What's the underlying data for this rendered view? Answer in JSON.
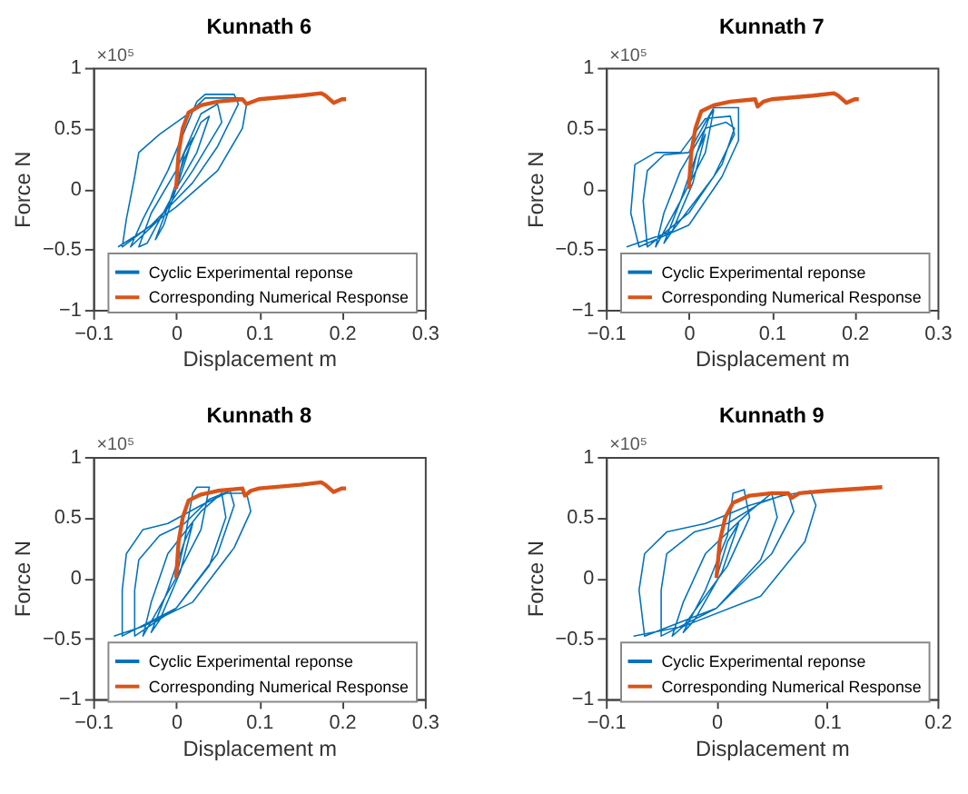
{
  "chart_data": [
    {
      "type": "line",
      "title": "Kunnath 6",
      "xlabel": "Displacement m",
      "ylabel": "Force N",
      "annotations": [
        "×10⁵"
      ],
      "xlim": [
        -0.1,
        0.3
      ],
      "xticks": [
        -0.1,
        0,
        0.1,
        0.2,
        0.3
      ],
      "ylim": [
        -1,
        1
      ],
      "yticks": [
        -1,
        -0.5,
        0,
        0.5,
        1
      ],
      "grid": false,
      "legend": "bottom",
      "series": [
        {
          "name": "Cyclic Experimental reponse",
          "color": "#0072bd",
          "x": [
            0,
            0.01,
            0.02,
            0.005,
            -0.015,
            -0.025,
            -0.01,
            0.01,
            0.03,
            0.04,
            0.025,
            0,
            -0.035,
            -0.045,
            -0.03,
            0,
            0.03,
            0.05,
            0.055,
            0.02,
            -0.02,
            -0.055,
            -0.04,
            -0.01,
            0.025,
            0.035,
            0.07,
            0.075,
            0.05,
            0.02,
            -0.03,
            -0.065,
            -0.06,
            -0.05,
            -0.045,
            -0.02,
            0.015,
            0.035,
            0.08,
            0.085,
            0.08,
            0.05,
            0,
            -0.04,
            -0.07
          ],
          "values": [
            0,
            0.3,
            0.42,
            0.1,
            -0.3,
            -0.42,
            -0.15,
            0.25,
            0.55,
            0.6,
            0.3,
            0,
            -0.45,
            -0.48,
            -0.2,
            0.15,
            0.62,
            0.7,
            0.55,
            0.15,
            -0.25,
            -0.48,
            -0.25,
            0.15,
            0.72,
            0.78,
            0.78,
            0.7,
            0.35,
            0.05,
            -0.3,
            -0.48,
            -0.25,
            0.1,
            0.3,
            0.45,
            0.62,
            0.75,
            0.75,
            0.7,
            0.5,
            0.15,
            -0.15,
            -0.35,
            -0.48
          ]
        },
        {
          "name": "Corresponding Numerical Response",
          "color": "#d95319",
          "x": [
            0,
            0.003,
            0.008,
            0.015,
            0.03,
            0.05,
            0.08,
            0.085,
            0.1,
            0.15,
            0.175,
            0.18,
            0.19,
            0.2,
            0.205
          ],
          "values": [
            0,
            0.3,
            0.5,
            0.63,
            0.69,
            0.72,
            0.74,
            0.7,
            0.74,
            0.77,
            0.79,
            0.77,
            0.71,
            0.74,
            0.74
          ]
        }
      ]
    },
    {
      "type": "line",
      "title": "Kunnath 7",
      "xlabel": "Displacement m",
      "ylabel": "Force N",
      "annotations": [
        "×10⁵"
      ],
      "xlim": [
        -0.1,
        0.3
      ],
      "xticks": [
        -0.1,
        0,
        0.1,
        0.2,
        0.3
      ],
      "ylim": [
        -1,
        1
      ],
      "yticks": [
        -1,
        -0.5,
        0,
        0.5,
        1
      ],
      "grid": false,
      "legend": "bottom",
      "series": [
        {
          "name": "Cyclic Experimental reponse",
          "color": "#0072bd",
          "x": [
            0,
            0.01,
            0.02,
            0.005,
            -0.02,
            -0.03,
            -0.01,
            0.01,
            0.025,
            0.03,
            0.02,
            -0.01,
            -0.04,
            -0.03,
            -0.01,
            0.02,
            0.045,
            0.055,
            0.04,
            0,
            -0.05,
            -0.055,
            -0.05,
            -0.03,
            0,
            0.02,
            0.03,
            0.06,
            0.06,
            0.04,
            0,
            -0.06,
            -0.07,
            -0.065,
            -0.04,
            -0.01,
            0.02,
            0.05,
            0.055,
            0.03,
            -0.02,
            -0.075
          ],
          "values": [
            0,
            0.3,
            0.45,
            0.05,
            -0.35,
            -0.45,
            -0.1,
            0.3,
            0.6,
            0.65,
            0.3,
            -0.1,
            -0.48,
            -0.2,
            0.15,
            0.5,
            0.55,
            0.5,
            0.2,
            -0.2,
            -0.48,
            -0.1,
            0.15,
            0.28,
            0.3,
            0.55,
            0.67,
            0.67,
            0.4,
            0.1,
            -0.3,
            -0.48,
            -0.2,
            0.2,
            0.3,
            0.3,
            0.58,
            0.6,
            0.45,
            0.1,
            -0.35,
            -0.48
          ]
        },
        {
          "name": "Corresponding Numerical Response",
          "color": "#d95319",
          "x": [
            0,
            0.003,
            0.008,
            0.015,
            0.03,
            0.05,
            0.08,
            0.083,
            0.09,
            0.1,
            0.15,
            0.175,
            0.18,
            0.19,
            0.2,
            0.205
          ],
          "values": [
            0,
            0.3,
            0.5,
            0.64,
            0.69,
            0.72,
            0.74,
            0.68,
            0.72,
            0.74,
            0.77,
            0.79,
            0.77,
            0.71,
            0.74,
            0.74
          ]
        }
      ]
    },
    {
      "type": "line",
      "title": "Kunnath 8",
      "xlabel": "Displacement m",
      "ylabel": "Force N",
      "annotations": [
        "×10⁵"
      ],
      "xlim": [
        -0.1,
        0.3
      ],
      "xticks": [
        -0.1,
        0,
        0.1,
        0.2,
        0.3
      ],
      "ylim": [
        -1,
        1
      ],
      "yticks": [
        -1,
        -0.5,
        0,
        0.5,
        1
      ],
      "grid": false,
      "legend": "bottom",
      "series": [
        {
          "name": "Cyclic Experimental reponse",
          "color": "#0072bd",
          "x": [
            0,
            0.01,
            0.02,
            0.005,
            -0.02,
            -0.03,
            -0.01,
            0.01,
            0.02,
            0.025,
            0.04,
            0.03,
            0,
            -0.04,
            -0.03,
            -0.01,
            0.03,
            0.055,
            0.06,
            0.04,
            0,
            -0.05,
            -0.05,
            -0.045,
            -0.02,
            0.01,
            0.04,
            0.065,
            0.07,
            0.05,
            0,
            -0.065,
            -0.065,
            -0.06,
            -0.04,
            -0.01,
            0.03,
            0.06,
            0.085,
            0.09,
            0.07,
            0.02,
            -0.04,
            -0.075
          ],
          "values": [
            0,
            0.3,
            0.45,
            0.05,
            -0.35,
            -0.45,
            -0.1,
            0.3,
            0.7,
            0.75,
            0.75,
            0.4,
            0,
            -0.48,
            -0.2,
            0.2,
            0.55,
            0.7,
            0.5,
            0.1,
            -0.25,
            -0.48,
            -0.1,
            0.15,
            0.35,
            0.45,
            0.65,
            0.72,
            0.6,
            0.2,
            -0.25,
            -0.48,
            -0.1,
            0.2,
            0.4,
            0.45,
            0.6,
            0.7,
            0.7,
            0.55,
            0.25,
            -0.2,
            -0.4,
            -0.48
          ]
        },
        {
          "name": "Corresponding Numerical Response",
          "color": "#d95319",
          "x": [
            0,
            0.003,
            0.008,
            0.015,
            0.03,
            0.05,
            0.08,
            0.083,
            0.09,
            0.1,
            0.15,
            0.175,
            0.18,
            0.19,
            0.2,
            0.205
          ],
          "values": [
            0,
            0.3,
            0.5,
            0.64,
            0.69,
            0.72,
            0.74,
            0.68,
            0.72,
            0.74,
            0.77,
            0.79,
            0.77,
            0.71,
            0.74,
            0.74
          ]
        }
      ]
    },
    {
      "type": "line",
      "title": "Kunnath 9",
      "xlabel": "Displacement m",
      "ylabel": "Force N",
      "annotations": [
        "×10⁵"
      ],
      "xlim": [
        -0.1,
        0.2
      ],
      "xticks": [
        -0.1,
        0,
        0.1,
        0.2
      ],
      "ylim": [
        -1,
        1
      ],
      "yticks": [
        -1,
        -0.5,
        0,
        0.5,
        1
      ],
      "grid": false,
      "legend": "bottom",
      "series": [
        {
          "name": "Cyclic Experimental reponse",
          "color": "#0072bd",
          "x": [
            0,
            0.01,
            0.02,
            0.005,
            -0.02,
            -0.03,
            -0.01,
            0.01,
            0.015,
            0.025,
            0.03,
            0.01,
            -0.03,
            -0.04,
            -0.03,
            -0.01,
            0.03,
            0.05,
            0.055,
            0.04,
            0,
            -0.05,
            -0.05,
            -0.045,
            -0.02,
            0.01,
            0.04,
            0.065,
            0.07,
            0.05,
            0,
            -0.065,
            -0.07,
            -0.065,
            -0.045,
            -0.01,
            0.03,
            0.06,
            0.085,
            0.09,
            0.08,
            0.04,
            -0.03,
            -0.075
          ],
          "values": [
            0,
            0.3,
            0.45,
            0.05,
            -0.35,
            -0.45,
            -0.1,
            0.35,
            0.7,
            0.73,
            0.5,
            0.1,
            -0.4,
            -0.48,
            -0.2,
            0.2,
            0.55,
            0.7,
            0.5,
            0.15,
            -0.25,
            -0.48,
            -0.1,
            0.2,
            0.38,
            0.45,
            0.62,
            0.7,
            0.55,
            0.2,
            -0.25,
            -0.48,
            -0.1,
            0.2,
            0.38,
            0.45,
            0.6,
            0.68,
            0.72,
            0.6,
            0.3,
            -0.15,
            -0.4,
            -0.48
          ]
        },
        {
          "name": "Corresponding Numerical Response",
          "color": "#d95319",
          "x": [
            0,
            0.003,
            0.008,
            0.015,
            0.03,
            0.05,
            0.065,
            0.068,
            0.075,
            0.1,
            0.15
          ],
          "values": [
            0,
            0.3,
            0.5,
            0.62,
            0.68,
            0.7,
            0.7,
            0.66,
            0.7,
            0.72,
            0.75
          ]
        }
      ]
    }
  ]
}
